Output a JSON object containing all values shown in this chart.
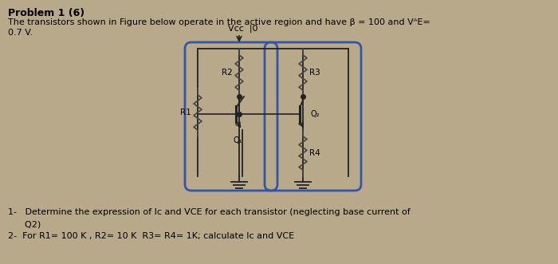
{
  "bg_color": "#b8a98a",
  "paper_color": "#e8e0d0",
  "title_bold": "Problem 1 (6)",
  "line1": "The transistors shown in Figure below operate in the active region and have β = 100 and VᴬE=",
  "line2": "0.7 V.",
  "vcc_label": "Vcc  |0",
  "r1_label": "R1",
  "r2_label": "R2",
  "r3_label": "R3",
  "r4_label": "R4",
  "q1_label": "Q₁",
  "q2_label": "Q₂",
  "footer1": "1-   Determine the expression of Ic and VCE for each transistor (neglecting base current of",
  "footer2": "      Q2)",
  "footer3": "2-  For R1= 100 K , R2= 10 K  R3= R4= 1K; calculate Ic and VCE",
  "circuit_box_color": "#3355aa",
  "wire_color": "#222222",
  "resistor_color": "#444444"
}
